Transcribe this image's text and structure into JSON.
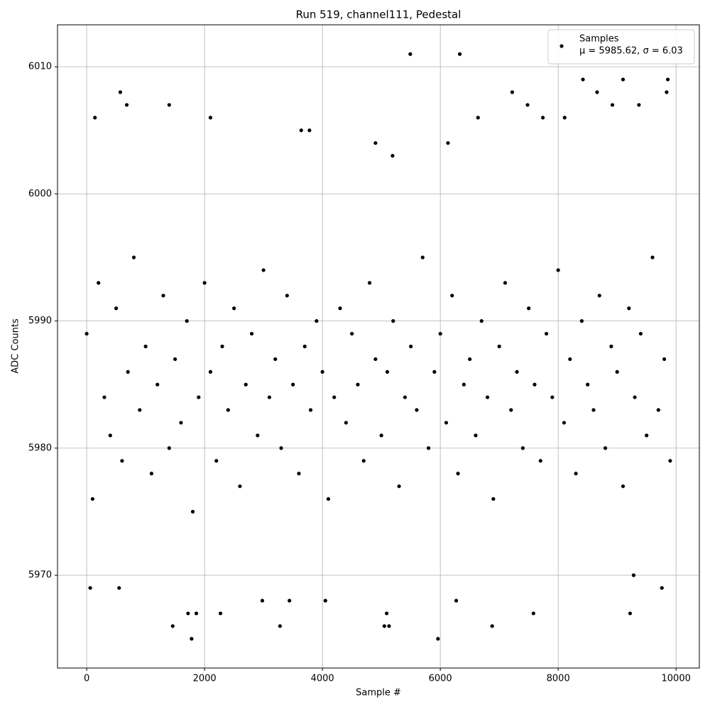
{
  "chart_data": {
    "type": "scatter",
    "title": "Run 519, channel111, Pedestal",
    "xlabel": "Sample #",
    "ylabel": "ADC Counts",
    "xlim": [
      -495,
      10395
    ],
    "ylim": [
      5962.7,
      6013.3
    ],
    "xticks": [
      0,
      2000,
      4000,
      6000,
      8000,
      10000
    ],
    "yticks": [
      5970,
      5980,
      5990,
      6000,
      6010
    ],
    "grid": true,
    "legend": "upper right",
    "legend_note": "μ = 5985.62, σ = 6.03",
    "series": [
      {
        "name": "Samples",
        "color": "#000000",
        "x": [
          0,
          100,
          200,
          300,
          400,
          500,
          600,
          700,
          800,
          900,
          1000,
          1100,
          1200,
          1300,
          1400,
          1500,
          1600,
          1700,
          1800,
          1900,
          2000,
          2100,
          2200,
          2300,
          2400,
          2500,
          2600,
          2700,
          2800,
          2900,
          3000,
          3100,
          3200,
          3300,
          3400,
          3500,
          3600,
          3700,
          3800,
          3900,
          4000,
          4100,
          4200,
          4300,
          4400,
          4500,
          4600,
          4700,
          4800,
          4900,
          5000,
          5100,
          5200,
          5300,
          5400,
          5500,
          5600,
          5700,
          5800,
          5900,
          6000,
          6100,
          6200,
          6300,
          6400,
          6500,
          6600,
          6700,
          6800,
          6900,
          7000,
          7100,
          7200,
          7300,
          7400,
          7500,
          7600,
          7700,
          7800,
          7900,
          8000,
          8100,
          8200,
          8300,
          8400,
          8500,
          8600,
          8700,
          8800,
          8900,
          9000,
          9100,
          9200,
          9300,
          9400,
          9500,
          9600,
          9700,
          9800,
          9900,
          5490,
          6330,
          60,
          550,
          1780,
          5960,
          6880,
          1460,
          5050,
          5130,
          3280,
          3440,
          4050,
          6270,
          2980,
          570,
          680,
          1400,
          2100,
          140,
          7220,
          8420,
          9100,
          9860,
          9840,
          8660,
          7480,
          8920,
          9370,
          7740,
          8110,
          6640,
          9220,
          9280,
          9760,
          7580,
          1720,
          1860,
          2270,
          5090,
          3780,
          3640,
          5190,
          6130,
          4900
        ],
        "values": [
          5989,
          5976,
          5993,
          5984,
          5981,
          5991,
          5979,
          5986,
          5995,
          5983,
          5988,
          5978,
          5985,
          5992,
          5980,
          5987,
          5982,
          5990,
          5975,
          5984,
          5993,
          5986,
          5979,
          5988,
          5983,
          5991,
          5977,
          5985,
          5989,
          5981,
          5994,
          5984,
          5987,
          5980,
          5992,
          5985,
          5978,
          5988,
          5983,
          5990,
          5986,
          5976,
          5984,
          5991,
          5982,
          5989,
          5985,
          5979,
          5993,
          5987,
          5981,
          5986,
          5990,
          5977,
          5984,
          5988,
          5983,
          5995,
          5980,
          5986,
          5989,
          5982,
          5992,
          5978,
          5985,
          5987,
          5981,
          5990,
          5984,
          5976,
          5988,
          5993,
          5983,
          5986,
          5980,
          5991,
          5985,
          5979,
          5989,
          5984,
          5994,
          5982,
          5987,
          5978,
          5990,
          5985,
          5983,
          5992,
          5980,
          5988,
          5986,
          5977,
          5991,
          5984,
          5989,
          5981,
          5995,
          5983,
          5987,
          5979,
          6011,
          6011,
          5969,
          5969,
          5965,
          5965,
          5966,
          5966,
          5966,
          5966,
          5966,
          5968,
          5968,
          5968,
          5968,
          6008,
          6007,
          6007,
          6006,
          6006,
          6008,
          6009,
          6009,
          6009,
          6008,
          6008,
          6007,
          6007,
          6007,
          6006,
          6006,
          6006,
          5967,
          5970,
          5969,
          5967,
          5967,
          5967,
          5967,
          5967,
          6005,
          6005,
          6003,
          6004,
          6004
        ]
      }
    ]
  }
}
